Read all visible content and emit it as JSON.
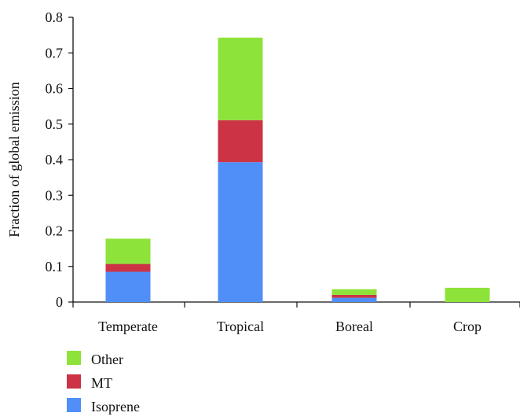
{
  "chart_data": {
    "type": "bar",
    "stacked": true,
    "categories": [
      "Temperate",
      "Tropical",
      "Boreal",
      "Crop"
    ],
    "series": [
      {
        "name": "Isoprene",
        "color": "#4f8ff7",
        "values": [
          0.085,
          0.393,
          0.012,
          0.0
        ]
      },
      {
        "name": "MT",
        "color": "#cc3344",
        "values": [
          0.022,
          0.118,
          0.008,
          0.0
        ]
      },
      {
        "name": "Other",
        "color": "#8ee33a",
        "values": [
          0.071,
          0.232,
          0.016,
          0.04
        ]
      }
    ],
    "ylabel": "Fraction of global emission",
    "xlabel": "",
    "ylim": [
      0,
      0.8
    ],
    "yticks": [
      "0",
      "0.1",
      "0.2",
      "0.3",
      "0.4",
      "0.5",
      "0.6",
      "0.7",
      "0.8"
    ],
    "ytick_values": [
      0,
      0.1,
      0.2,
      0.3,
      0.4,
      0.5,
      0.6,
      0.7,
      0.8
    ],
    "legend": {
      "placement": "bottom-left",
      "items": [
        "Other",
        "MT",
        "Isoprene"
      ]
    },
    "grid": false
  }
}
